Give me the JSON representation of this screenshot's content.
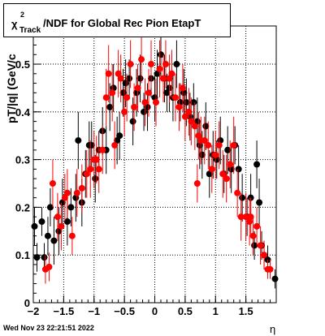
{
  "chart_data": {
    "type": "scatter",
    "title": "χ²_Track/NDF for Global Rec Pion EtapT",
    "title_parts": {
      "chi": "χ",
      "superscript": "2",
      "subscript": "Track",
      "rest": "/NDF for Global Rec Pion EtapT"
    },
    "xlabel": "η",
    "ylabel": "pT/|q| (GeV/c",
    "xlim": [
      -2.0,
      2.0
    ],
    "ylim": [
      0.0,
      0.58
    ],
    "x_ticks": [
      -2,
      -1.5,
      -1,
      -0.5,
      0,
      0.5,
      1,
      1.5
    ],
    "x_tick_labels": [
      "−2",
      "−1.5",
      "−1",
      "−0.5",
      "0",
      "0.5",
      "1",
      "1.5"
    ],
    "y_ticks": [
      0,
      0.1,
      0.2,
      0.3,
      0.4,
      0.5
    ],
    "y_tick_labels": [
      "0",
      "0.1",
      "0.2",
      "0.3",
      "0.4",
      "0.5"
    ],
    "grid": true,
    "series": [
      {
        "color": "#000000",
        "points": [
          [
            -1.98,
            0.16,
            0.04
          ],
          [
            -1.94,
            0.095,
            0.03
          ],
          [
            -1.86,
            0.17,
            0.03
          ],
          [
            -1.82,
            0.095,
            0.03
          ],
          [
            -1.76,
            0.14,
            0.04
          ],
          [
            -1.72,
            0.2,
            0.04
          ],
          [
            -1.66,
            0.13,
            0.05
          ],
          [
            -1.58,
            0.15,
            0.05
          ],
          [
            -1.52,
            0.21,
            0.05
          ],
          [
            -1.44,
            0.17,
            0.05
          ],
          [
            -1.38,
            0.2,
            0.04
          ],
          [
            -1.3,
            0.22,
            0.05
          ],
          [
            -1.26,
            0.34,
            0.06
          ],
          [
            -1.2,
            0.21,
            0.05
          ],
          [
            -1.14,
            0.27,
            0.05
          ],
          [
            -1.08,
            0.33,
            0.05
          ],
          [
            -1.04,
            0.33,
            0.05
          ],
          [
            -0.98,
            0.26,
            0.05
          ],
          [
            -0.92,
            0.32,
            0.04
          ],
          [
            -0.86,
            0.36,
            0.05
          ],
          [
            -0.8,
            0.32,
            0.05
          ],
          [
            -0.74,
            0.41,
            0.05
          ],
          [
            -0.68,
            0.45,
            0.05
          ],
          [
            -0.62,
            0.34,
            0.05
          ],
          [
            -0.58,
            0.35,
            0.05
          ],
          [
            -0.52,
            0.44,
            0.05
          ],
          [
            -0.48,
            0.46,
            0.05
          ],
          [
            -0.42,
            0.47,
            0.04
          ],
          [
            -0.36,
            0.38,
            0.05
          ],
          [
            -0.3,
            0.44,
            0.05
          ],
          [
            -0.24,
            0.47,
            0.05
          ],
          [
            -0.18,
            0.4,
            0.04
          ],
          [
            -0.12,
            0.41,
            0.05
          ],
          [
            -0.06,
            0.47,
            0.04
          ],
          [
            0.0,
            0.43,
            0.05
          ],
          [
            0.04,
            0.48,
            0.05
          ],
          [
            0.1,
            0.52,
            0.05
          ],
          [
            0.16,
            0.47,
            0.05
          ],
          [
            0.2,
            0.44,
            0.04
          ],
          [
            0.24,
            0.45,
            0.05
          ],
          [
            0.3,
            0.43,
            0.05
          ],
          [
            0.36,
            0.5,
            0.05
          ],
          [
            0.42,
            0.42,
            0.04
          ],
          [
            0.48,
            0.44,
            0.05
          ],
          [
            0.52,
            0.42,
            0.05
          ],
          [
            0.58,
            0.39,
            0.05
          ],
          [
            0.64,
            0.42,
            0.04
          ],
          [
            0.7,
            0.38,
            0.05
          ],
          [
            0.74,
            0.33,
            0.05
          ],
          [
            0.78,
            0.31,
            0.05
          ],
          [
            0.84,
            0.37,
            0.05
          ],
          [
            0.9,
            0.27,
            0.05
          ],
          [
            0.96,
            0.31,
            0.05
          ],
          [
            1.02,
            0.3,
            0.04
          ],
          [
            1.08,
            0.34,
            0.05
          ],
          [
            1.14,
            0.27,
            0.04
          ],
          [
            1.2,
            0.32,
            0.05
          ],
          [
            1.26,
            0.28,
            0.05
          ],
          [
            1.32,
            0.33,
            0.04
          ],
          [
            1.38,
            0.28,
            0.05
          ],
          [
            1.44,
            0.22,
            0.05
          ],
          [
            1.52,
            0.18,
            0.04
          ],
          [
            1.58,
            0.22,
            0.05
          ],
          [
            1.64,
            0.12,
            0.03
          ],
          [
            1.72,
            0.21,
            0.05
          ],
          [
            1.76,
            0.12,
            0.03
          ],
          [
            1.8,
            0.1,
            0.03
          ],
          [
            1.86,
            0.09,
            0.03
          ],
          [
            1.98,
            0.05,
            0.02
          ],
          [
            1.68,
            0.29,
            0.05
          ]
        ]
      },
      {
        "color": "#ff0000",
        "points": [
          [
            -1.8,
            0.07,
            0.03
          ],
          [
            -1.74,
            0.075,
            0.03
          ],
          [
            -1.68,
            0.25,
            0.05
          ],
          [
            -1.6,
            0.18,
            0.05
          ],
          [
            -1.54,
            0.16,
            0.05
          ],
          [
            -1.48,
            0.22,
            0.05
          ],
          [
            -1.44,
            0.23,
            0.05
          ],
          [
            -1.36,
            0.14,
            0.04
          ],
          [
            -1.28,
            0.23,
            0.05
          ],
          [
            -1.2,
            0.24,
            0.05
          ],
          [
            -1.12,
            0.27,
            0.05
          ],
          [
            -1.06,
            0.28,
            0.06
          ],
          [
            -1.0,
            0.3,
            0.06
          ],
          [
            -0.96,
            0.3,
            0.05
          ],
          [
            -0.92,
            0.28,
            0.05
          ],
          [
            -0.86,
            0.32,
            0.05
          ],
          [
            -0.8,
            0.43,
            0.06
          ],
          [
            -0.76,
            0.48,
            0.06
          ],
          [
            -0.7,
            0.44,
            0.06
          ],
          [
            -0.66,
            0.33,
            0.05
          ],
          [
            -0.6,
            0.48,
            0.05
          ],
          [
            -0.56,
            0.47,
            0.05
          ],
          [
            -0.5,
            0.4,
            0.05
          ],
          [
            -0.46,
            0.43,
            0.05
          ],
          [
            -0.4,
            0.5,
            0.05
          ],
          [
            -0.34,
            0.41,
            0.05
          ],
          [
            -0.28,
            0.45,
            0.05
          ],
          [
            -0.22,
            0.51,
            0.05
          ],
          [
            -0.16,
            0.42,
            0.05
          ],
          [
            -0.1,
            0.44,
            0.05
          ],
          [
            -0.06,
            0.5,
            0.05
          ],
          [
            0.02,
            0.42,
            0.05
          ],
          [
            0.08,
            0.49,
            0.06
          ],
          [
            0.14,
            0.47,
            0.05
          ],
          [
            0.18,
            0.5,
            0.05
          ],
          [
            0.24,
            0.47,
            0.05
          ],
          [
            0.28,
            0.48,
            0.05
          ],
          [
            0.34,
            0.43,
            0.05
          ],
          [
            0.4,
            0.41,
            0.05
          ],
          [
            0.46,
            0.45,
            0.05
          ],
          [
            0.5,
            0.39,
            0.05
          ],
          [
            0.56,
            0.4,
            0.05
          ],
          [
            0.6,
            0.38,
            0.05
          ],
          [
            0.66,
            0.37,
            0.05
          ],
          [
            0.72,
            0.35,
            0.05
          ],
          [
            0.76,
            0.34,
            0.05
          ],
          [
            0.82,
            0.34,
            0.05
          ],
          [
            0.88,
            0.33,
            0.05
          ],
          [
            0.94,
            0.28,
            0.05
          ],
          [
            1.0,
            0.31,
            0.05
          ],
          [
            1.06,
            0.33,
            0.05
          ],
          [
            1.12,
            0.27,
            0.05
          ],
          [
            1.18,
            0.26,
            0.05
          ],
          [
            1.24,
            0.29,
            0.05
          ],
          [
            1.3,
            0.33,
            0.06
          ],
          [
            1.36,
            0.23,
            0.05
          ],
          [
            1.42,
            0.18,
            0.05
          ],
          [
            1.5,
            0.18,
            0.05
          ],
          [
            1.56,
            0.17,
            0.05
          ],
          [
            1.62,
            0.14,
            0.04
          ],
          [
            1.68,
            0.16,
            0.04
          ],
          [
            1.74,
            0.12,
            0.04
          ],
          [
            1.8,
            0.1,
            0.03
          ],
          [
            1.86,
            0.07,
            0.02
          ],
          [
            1.9,
            0.07,
            0.02
          ],
          [
            0.7,
            0.25,
            0.04
          ],
          [
            1.58,
            0.18,
            0.04
          ]
        ]
      }
    ]
  },
  "footer": {
    "timestamp": "Wed Nov 23 22:21:51 2022"
  }
}
